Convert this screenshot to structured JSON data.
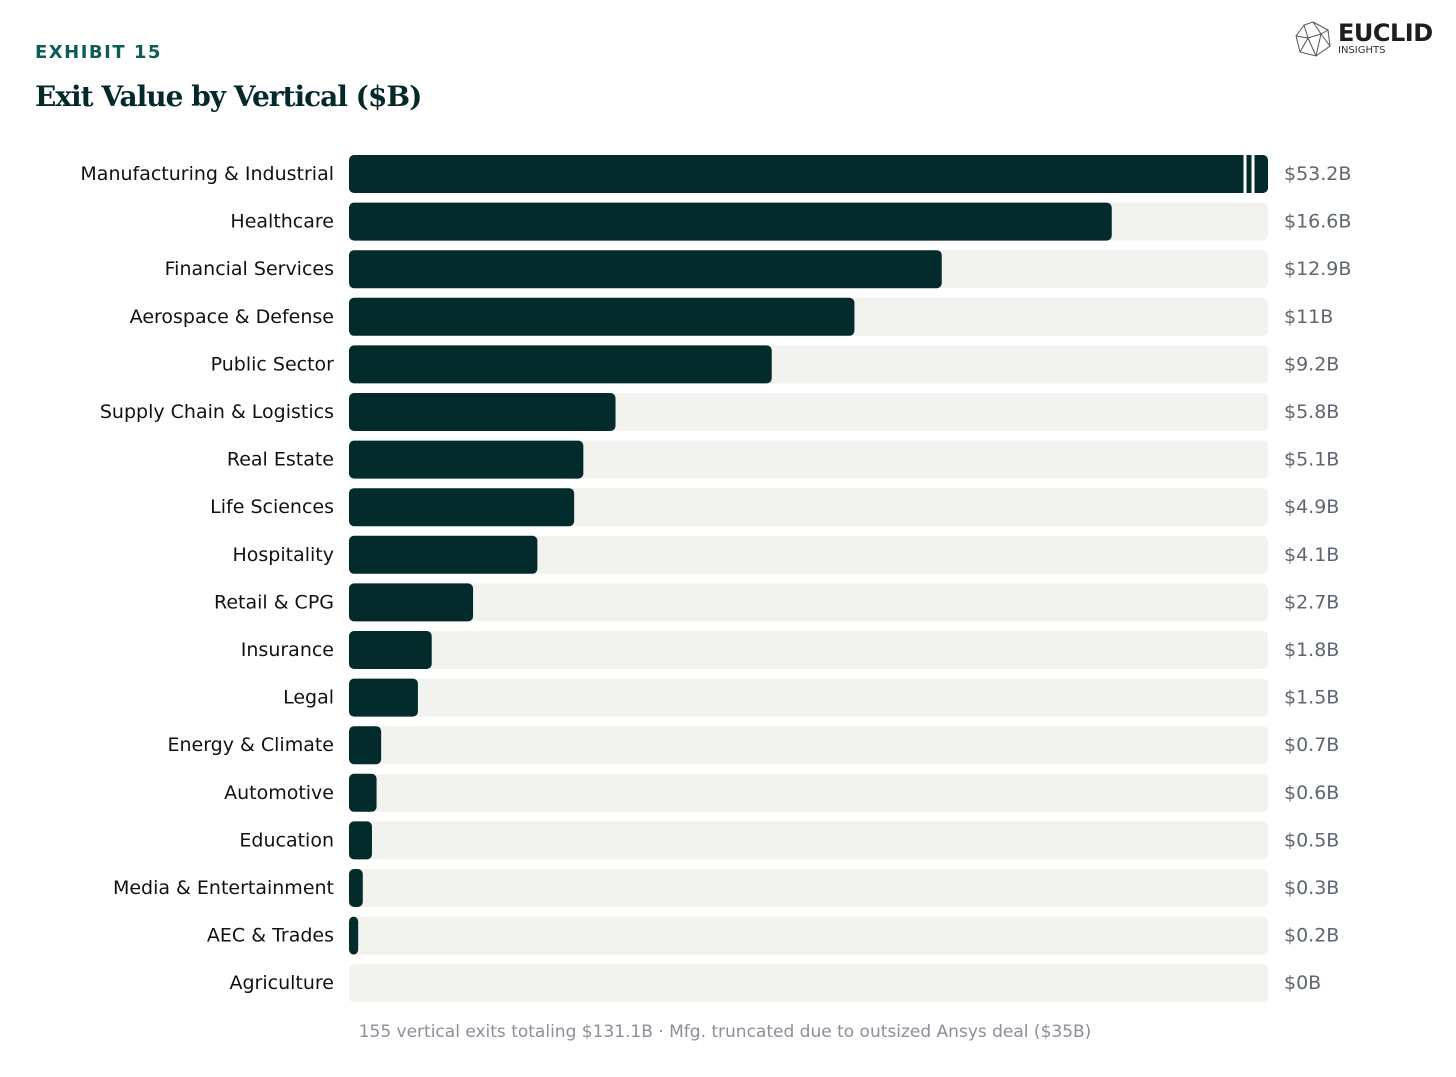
{
  "header": {
    "exhibit": "EXHIBIT 15",
    "title": "Exit Value by Vertical ($B)"
  },
  "logo": {
    "name": "EUCLID",
    "sub": "INSIGHTS"
  },
  "footer": "155 vertical exits totaling $131.1B · Mfg. truncated due to outsized Ansys deal ($35B)",
  "colors": {
    "bar": "#032b2b",
    "track": "#f2f2ee",
    "label": "#111111",
    "value": "#5f6670"
  },
  "chart_data": {
    "type": "bar",
    "orientation": "horizontal",
    "title": "Exit Value by Vertical ($B)",
    "xlim": [
      0,
      20
    ],
    "truncated": [
      "Manufacturing & Industrial"
    ],
    "categories": [
      "Manufacturing & Industrial",
      "Healthcare",
      "Financial Services",
      "Aerospace & Defense",
      "Public Sector",
      "Supply Chain & Logistics",
      "Real Estate",
      "Life Sciences",
      "Hospitality",
      "Retail & CPG",
      "Insurance",
      "Legal",
      "Energy & Climate",
      "Automotive",
      "Education",
      "Media & Entertainment",
      "AEC & Trades",
      "Agriculture"
    ],
    "values": [
      53.2,
      16.6,
      12.9,
      11,
      9.2,
      5.8,
      5.1,
      4.9,
      4.1,
      2.7,
      1.8,
      1.5,
      0.7,
      0.6,
      0.5,
      0.3,
      0.2,
      0
    ],
    "value_labels": [
      "$53.2B",
      "$16.6B",
      "$12.9B",
      "$11B",
      "$9.2B",
      "$5.8B",
      "$5.1B",
      "$4.9B",
      "$4.1B",
      "$2.7B",
      "$1.8B",
      "$1.5B",
      "$0.7B",
      "$0.6B",
      "$0.5B",
      "$0.3B",
      "$0.2B",
      "$0B"
    ]
  }
}
